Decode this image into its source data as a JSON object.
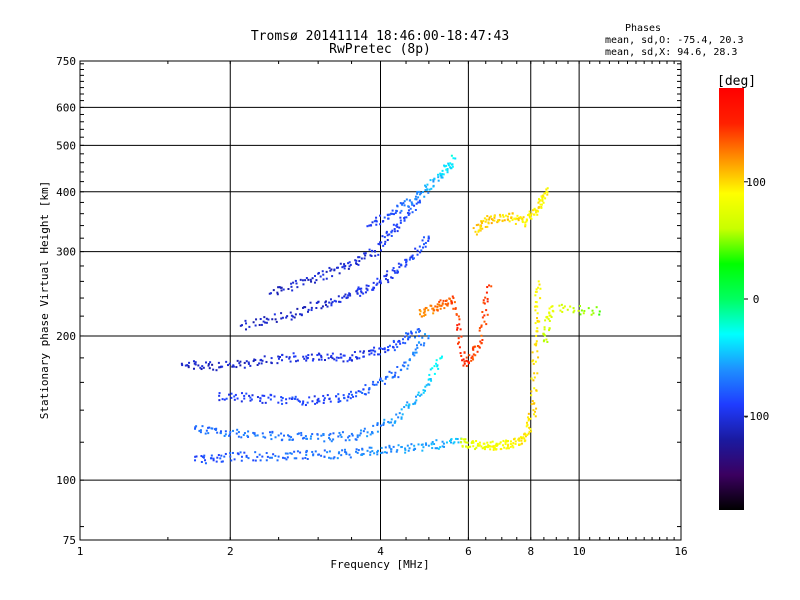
{
  "chart_data": {
    "type": "scatter",
    "title": "Tromsø 20141114 18:46:00-18:47:43",
    "subtitle": "RwPretec (8p)",
    "xlabel": "Frequency [MHz]",
    "ylabel": "Stationary phase Virtual Height [km]",
    "x_scale": "log",
    "y_scale": "log",
    "xlim": [
      1,
      16
    ],
    "ylim": [
      75,
      750
    ],
    "x_ticks": [
      1,
      2,
      4,
      6,
      8,
      10,
      16
    ],
    "y_ticks": [
      75,
      100,
      200,
      300,
      400,
      500,
      600,
      750
    ],
    "grid": true,
    "colorbar": {
      "label": "[deg]",
      "range": [
        -180,
        180
      ],
      "ticks": [
        100,
        0,
        -100
      ],
      "colormap": [
        "#000000",
        "#3b0060",
        "#1a1aa0",
        "#1f3cff",
        "#1e90ff",
        "#00ffff",
        "#00ff60",
        "#00ff00",
        "#c8ff00",
        "#ffff00",
        "#ff9000",
        "#ff2000",
        "#ff0000"
      ]
    },
    "phase_stats": {
      "title": "Phases",
      "line_o": "mean, sd,O: -75.4, 20.3",
      "line_x": "mean, sd,X:  94.6, 28.3"
    },
    "series": [
      {
        "values": [
          {
            "x": 1.6,
            "y": 175,
            "p": -110
          },
          {
            "x": 1.9,
            "y": 172,
            "p": -110
          },
          {
            "x": 2.3,
            "y": 178,
            "p": -105
          },
          {
            "x": 2.8,
            "y": 181,
            "p": -100
          },
          {
            "x": 3.3,
            "y": 180,
            "p": -98
          },
          {
            "x": 3.8,
            "y": 183,
            "p": -95
          },
          {
            "x": 4.3,
            "y": 192,
            "p": -85
          },
          {
            "x": 4.8,
            "y": 205,
            "p": -75
          }
        ]
      },
      {
        "values": [
          {
            "x": 1.7,
            "y": 128,
            "p": -75
          },
          {
            "x": 2.0,
            "y": 126,
            "p": -72
          },
          {
            "x": 2.5,
            "y": 124,
            "p": -70
          },
          {
            "x": 3.0,
            "y": 122,
            "p": -68
          },
          {
            "x": 3.6,
            "y": 124,
            "p": -65
          },
          {
            "x": 4.2,
            "y": 132,
            "p": -60
          },
          {
            "x": 4.8,
            "y": 150,
            "p": -50
          },
          {
            "x": 5.3,
            "y": 180,
            "p": -30
          }
        ]
      },
      {
        "values": [
          {
            "x": 1.7,
            "y": 110,
            "p": -85
          },
          {
            "x": 2.0,
            "y": 112,
            "p": -80
          },
          {
            "x": 2.5,
            "y": 112,
            "p": -75
          },
          {
            "x": 3.0,
            "y": 113,
            "p": -70
          },
          {
            "x": 3.6,
            "y": 114,
            "p": -65
          },
          {
            "x": 4.2,
            "y": 116,
            "p": -60
          },
          {
            "x": 5.0,
            "y": 118,
            "p": -55
          },
          {
            "x": 5.8,
            "y": 120,
            "p": -45
          }
        ]
      },
      {
        "values": [
          {
            "x": 1.9,
            "y": 150,
            "p": -95
          },
          {
            "x": 2.3,
            "y": 148,
            "p": -90
          },
          {
            "x": 2.8,
            "y": 146,
            "p": -90
          },
          {
            "x": 3.3,
            "y": 148,
            "p": -85
          },
          {
            "x": 3.8,
            "y": 155,
            "p": -80
          },
          {
            "x": 4.4,
            "y": 170,
            "p": -70
          },
          {
            "x": 5.0,
            "y": 200,
            "p": -60
          }
        ]
      },
      {
        "values": [
          {
            "x": 2.1,
            "y": 210,
            "p": -110
          },
          {
            "x": 2.6,
            "y": 220,
            "p": -108
          },
          {
            "x": 3.1,
            "y": 235,
            "p": -105
          },
          {
            "x": 3.6,
            "y": 245,
            "p": -100
          },
          {
            "x": 4.0,
            "y": 260,
            "p": -95
          },
          {
            "x": 4.5,
            "y": 285,
            "p": -90
          },
          {
            "x": 5.0,
            "y": 320,
            "p": -85
          }
        ]
      },
      {
        "values": [
          {
            "x": 2.4,
            "y": 245,
            "p": -110
          },
          {
            "x": 2.9,
            "y": 262,
            "p": -108
          },
          {
            "x": 3.4,
            "y": 280,
            "p": -105
          },
          {
            "x": 3.9,
            "y": 300,
            "p": -100
          },
          {
            "x": 4.3,
            "y": 340,
            "p": -90
          },
          {
            "x": 4.8,
            "y": 380,
            "p": -80
          }
        ]
      },
      {
        "values": [
          {
            "x": 3.8,
            "y": 340,
            "p": -95
          },
          {
            "x": 4.3,
            "y": 365,
            "p": -80
          },
          {
            "x": 4.8,
            "y": 395,
            "p": -60
          },
          {
            "x": 5.3,
            "y": 430,
            "p": -45
          },
          {
            "x": 5.6,
            "y": 470,
            "p": -30
          }
        ]
      },
      {
        "values": [
          {
            "x": 4.8,
            "y": 222,
            "p": 120
          },
          {
            "x": 5.2,
            "y": 230,
            "p": 130
          },
          {
            "x": 5.6,
            "y": 240,
            "p": 140
          },
          {
            "x": 5.9,
            "y": 175,
            "p": 150
          },
          {
            "x": 6.3,
            "y": 190,
            "p": 135
          },
          {
            "x": 6.6,
            "y": 255,
            "p": 145
          }
        ]
      },
      {
        "values": [
          {
            "x": 5.8,
            "y": 120,
            "p": 70
          },
          {
            "x": 6.3,
            "y": 118,
            "p": 80
          },
          {
            "x": 6.8,
            "y": 118,
            "p": 85
          },
          {
            "x": 7.3,
            "y": 119,
            "p": 90
          },
          {
            "x": 7.8,
            "y": 121,
            "p": 95
          },
          {
            "x": 8.1,
            "y": 140,
            "p": 100
          },
          {
            "x": 8.2,
            "y": 200,
            "p": 95
          },
          {
            "x": 8.3,
            "y": 260,
            "p": 90
          }
        ]
      },
      {
        "values": [
          {
            "x": 6.2,
            "y": 330,
            "p": 100
          },
          {
            "x": 6.6,
            "y": 350,
            "p": 105
          },
          {
            "x": 7.2,
            "y": 355,
            "p": 100
          },
          {
            "x": 7.8,
            "y": 345,
            "p": 95
          },
          {
            "x": 8.3,
            "y": 370,
            "p": 95
          },
          {
            "x": 8.6,
            "y": 400,
            "p": 90
          }
        ]
      },
      {
        "values": [
          {
            "x": 8.5,
            "y": 195,
            "p": 60
          },
          {
            "x": 8.8,
            "y": 230,
            "p": 80
          },
          {
            "x": 11.0,
            "y": 225,
            "p": 40
          }
        ]
      }
    ]
  }
}
